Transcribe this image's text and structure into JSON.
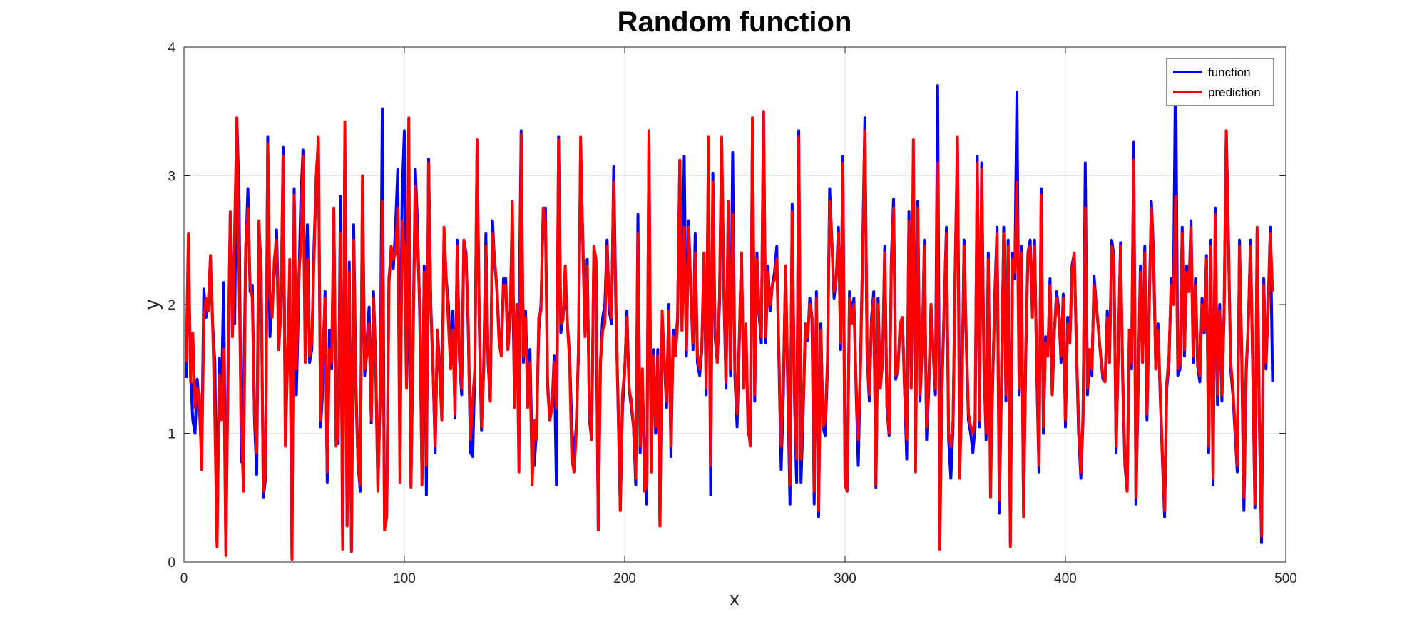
{
  "chart_data": {
    "type": "line",
    "title": "Random function",
    "xlabel": "x",
    "ylabel": "y",
    "xlim": [
      0,
      500
    ],
    "ylim": [
      0,
      4
    ],
    "xticks": [
      0,
      100,
      200,
      300,
      400,
      500
    ],
    "yticks": [
      0,
      1,
      2,
      3,
      4
    ],
    "grid": true,
    "legend_position": "top-right",
    "legend": [
      "function",
      "prediction"
    ],
    "colors": {
      "function": "#0000ff",
      "prediction": "#ff0000"
    },
    "x_start": 1,
    "x_step": 1,
    "series": [
      {
        "name": "function",
        "color": "#0000ff",
        "y": [
          1.43,
          2.45,
          1.45,
          1.1,
          1.0,
          1.42,
          1.2,
          0.8,
          2.12,
          1.9,
          2.0,
          2.35,
          1.85,
          1.55,
          0.15,
          1.58,
          1.25,
          2.17,
          0.1,
          1.5,
          2.7,
          2.0,
          1.85,
          3.45,
          2.8,
          0.78,
          1.2,
          2.4,
          2.9,
          2.1,
          2.15,
          1.1,
          0.68,
          2.6,
          2.3,
          0.5,
          0.65,
          3.3,
          1.75,
          2.0,
          2.25,
          2.58,
          1.85,
          1.9,
          3.22,
          1.0,
          1.62,
          2.0,
          0.05,
          2.9,
          1.3,
          2.05,
          2.8,
          3.2,
          1.8,
          2.62,
          1.55,
          1.65,
          2.45,
          2.98,
          3.25,
          1.05,
          1.35,
          2.1,
          0.62,
          1.8,
          1.5,
          2.7,
          0.95,
          0.92,
          2.84,
          0.14,
          3.3,
          0.28,
          2.33,
          0.1,
          2.62,
          1.4,
          0.75,
          0.55,
          2.95,
          1.45,
          1.7,
          1.98,
          1.08,
          2.1,
          1.55,
          0.58,
          1.25,
          3.52,
          0.3,
          0.35,
          2.2,
          2.4,
          2.28,
          2.6,
          3.05,
          1.2,
          2.85,
          3.35,
          1.4,
          2.4,
          0.6,
          1.8,
          3.05,
          2.6,
          1.9,
          0.65,
          2.3,
          0.52,
          3.13,
          2.0,
          1.5,
          0.85,
          1.8,
          1.55,
          1.12,
          2.55,
          2.2,
          2.0,
          1.55,
          1.95,
          1.12,
          2.5,
          1.58,
          1.3,
          2.5,
          2.4,
          1.8,
          0.85,
          0.82,
          1.5,
          3.22,
          1.85,
          1.02,
          1.5,
          2.55,
          1.55,
          1.25,
          2.65,
          2.3,
          2.15,
          1.75,
          1.65,
          2.2,
          2.2,
          1.65,
          1.95,
          2.35,
          1.25,
          2.0,
          1.75,
          3.35,
          1.55,
          1.95,
          1.35,
          1.65,
          0.82,
          0.75,
          1.05,
          1.8,
          2.0,
          2.7,
          2.75,
          1.4,
          1.1,
          1.2,
          1.6,
          0.6,
          3.3,
          1.78,
          1.9,
          2.15,
          1.85,
          1.6,
          1.05,
          0.8,
          1.05,
          1.6,
          3.2,
          2.5,
          1.8,
          2.35,
          1.1,
          0.95,
          2.42,
          2.1,
          0.25,
          1.55,
          1.9,
          2.0,
          2.5,
          1.95,
          1.85,
          3.07,
          2.0,
          1.2,
          0.4,
          1.2,
          1.48,
          1.95,
          1.35,
          1.2,
          1.05,
          0.6,
          2.7,
          0.85,
          1.42,
          0.85,
          0.45,
          3.35,
          0.7,
          1.65,
          1.0,
          1.65,
          0.28,
          1.9,
          1.55,
          1.2,
          2.0,
          0.82,
          1.8,
          1.65,
          1.9,
          3.12,
          1.8,
          3.15,
          1.6,
          2.65,
          2.1,
          1.65,
          2.55,
          1.55,
          1.45,
          1.65,
          2.4,
          1.3,
          3.2,
          0.52,
          3.02,
          1.75,
          1.55,
          2.0,
          3.25,
          2.1,
          1.35,
          2.8,
          1.45,
          3.18,
          1.45,
          1.05,
          1.7,
          2.4,
          1.35,
          1.82,
          1.0,
          0.95,
          3.45,
          1.25,
          2.4,
          1.92,
          1.7,
          3.5,
          1.7,
          2.3,
          1.95,
          2.15,
          2.25,
          2.45,
          1.55,
          0.72,
          1.3,
          2.3,
          1.35,
          0.45,
          2.78,
          1.3,
          0.62,
          3.35,
          0.62,
          1.15,
          1.85,
          1.72,
          2.05,
          1.9,
          0.45,
          2.1,
          0.35,
          1.85,
          1.05,
          0.98,
          1.5,
          2.9,
          2.5,
          2.05,
          2.2,
          2.6,
          1.65,
          3.15,
          0.6,
          0.55,
          2.1,
          1.9,
          2.05,
          1.35,
          0.75,
          1.55,
          2.45,
          3.45,
          1.6,
          1.25,
          1.9,
          2.1,
          0.58,
          2.05,
          1.35,
          1.55,
          2.45,
          1.2,
          0.98,
          2.35,
          2.82,
          1.42,
          1.5,
          1.85,
          1.9,
          1.35,
          0.8,
          2.72,
          1.35,
          2.9,
          1.6,
          2.8,
          1.25,
          1.65,
          2.5,
          0.95,
          1.35,
          2.0,
          1.62,
          1.3,
          3.7,
          0.5,
          1.35,
          2.0,
          2.6,
          0.95,
          0.65,
          1.05,
          2.3,
          3.25,
          1.1,
          1.25,
          2.5,
          1.7,
          1.1,
          1.0,
          0.85,
          1.05,
          3.15,
          1.05,
          3.1,
          1.55,
          0.95,
          2.4,
          0.7,
          1.4,
          2.1,
          2.6,
          0.38,
          1.4,
          2.6,
          1.25,
          2.5,
          0.15,
          2.4,
          2.2,
          3.65,
          1.3,
          2.45,
          0.38,
          1.6,
          2.4,
          2.5,
          1.95,
          2.5,
          1.45,
          0.7,
          2.9,
          1.0,
          1.75,
          1.6,
          2.2,
          1.3,
          1.8,
          2.1,
          1.95,
          1.55,
          2.08,
          1.05,
          1.9,
          1.7,
          2.3,
          2.4,
          1.65,
          1.0,
          0.65,
          1.1,
          3.1,
          1.3,
          1.6,
          1.45,
          2.22,
          2.0,
          1.8,
          1.6,
          1.42,
          1.4,
          1.95,
          1.55,
          2.5,
          2.38,
          0.85,
          1.65,
          2.48,
          1.4,
          0.75,
          0.55,
          1.8,
          1.5,
          3.26,
          0.45,
          1.35,
          2.3,
          1.55,
          2.45,
          1.1,
          2.0,
          2.8,
          2.4,
          1.5,
          1.85,
          1.3,
          0.8,
          0.35,
          1.35,
          1.55,
          2.2,
          2.05,
          3.9,
          1.45,
          1.5,
          2.6,
          1.6,
          2.3,
          2.1,
          2.65,
          1.55,
          2.2,
          1.52,
          1.4,
          2.05,
          1.78,
          2.38,
          0.85,
          2.5,
          0.6,
          2.75,
          1.22,
          2.0,
          1.25,
          1.95,
          3.35,
          2.5,
          1.5,
          1.3,
          1.0,
          0.7,
          2.5,
          1.6,
          0.4,
          1.45,
          1.85,
          2.5,
          1.5,
          0.42,
          2.55,
          1.1,
          0.15,
          2.2,
          1.5,
          2.0,
          2.6,
          1.4
        ]
      },
      {
        "name": "prediction",
        "color": "#ff0000",
        "y": [
          1.55,
          2.55,
          1.4,
          1.78,
          1.2,
          1.35,
          1.3,
          0.72,
          1.9,
          2.05,
          1.95,
          2.38,
          1.85,
          1.12,
          0.12,
          1.45,
          1.1,
          1.65,
          0.05,
          1.55,
          2.72,
          1.75,
          2.6,
          3.45,
          2.2,
          1.1,
          0.55,
          2.45,
          2.75,
          2.15,
          2.05,
          1.15,
          0.85,
          2.65,
          2.25,
          0.55,
          0.7,
          3.25,
          2.05,
          1.9,
          2.35,
          2.5,
          1.65,
          1.95,
          3.15,
          0.9,
          1.55,
          2.35,
          0.02,
          2.85,
          1.5,
          2.2,
          2.45,
          3.15,
          1.55,
          2.35,
          1.6,
          1.7,
          2.35,
          3.0,
          3.3,
          1.1,
          1.6,
          2.05,
          0.7,
          1.65,
          1.55,
          2.75,
          0.9,
          1.0,
          2.55,
          0.1,
          3.42,
          0.28,
          2.25,
          0.08,
          2.5,
          1.3,
          0.75,
          0.6,
          3.0,
          1.5,
          1.6,
          1.85,
          1.1,
          2.05,
          1.5,
          0.55,
          1.3,
          2.8,
          0.25,
          0.35,
          2.15,
          2.45,
          2.35,
          2.4,
          2.75,
          0.62,
          2.65,
          2.45,
          1.35,
          3.45,
          0.58,
          1.75,
          2.92,
          2.45,
          2.0,
          0.6,
          2.25,
          0.75,
          3.1,
          1.95,
          1.5,
          0.9,
          1.8,
          1.5,
          1.1,
          2.6,
          2.2,
          1.85,
          1.5,
          1.8,
          1.15,
          2.45,
          1.6,
          1.35,
          2.5,
          2.35,
          1.85,
          0.95,
          1.25,
          1.5,
          3.28,
          1.9,
          1.05,
          1.5,
          2.45,
          1.6,
          1.25,
          2.55,
          2.35,
          2.1,
          1.7,
          1.6,
          2.15,
          2.15,
          1.65,
          1.9,
          2.8,
          1.2,
          2.0,
          0.7,
          3.32,
          1.6,
          1.9,
          1.2,
          1.55,
          0.6,
          1.1,
          0.95,
          1.9,
          1.95,
          2.75,
          2.65,
          1.35,
          1.1,
          1.2,
          1.55,
          1.2,
          3.28,
          1.85,
          1.88,
          2.3,
          1.85,
          1.55,
          0.8,
          0.7,
          1.0,
          1.65,
          3.3,
          2.45,
          1.75,
          2.3,
          1.15,
          0.95,
          2.45,
          2.35,
          0.25,
          1.55,
          1.8,
          1.85,
          2.45,
          2.0,
          1.9,
          2.95,
          1.95,
          1.25,
          0.4,
          1.3,
          1.5,
          1.9,
          1.35,
          1.25,
          1.05,
          0.65,
          2.55,
          0.9,
          1.5,
          0.55,
          0.6,
          3.35,
          0.7,
          1.6,
          1.05,
          1.6,
          0.28,
          1.95,
          1.55,
          1.25,
          1.95,
          0.9,
          1.75,
          1.6,
          1.85,
          3.12,
          1.8,
          2.6,
          1.65,
          2.6,
          2.1,
          1.7,
          2.4,
          1.6,
          1.5,
          1.7,
          2.4,
          1.35,
          3.3,
          0.75,
          2.95,
          1.8,
          1.55,
          2.05,
          3.3,
          2.15,
          1.4,
          2.8,
          1.5,
          2.7,
          1.5,
          1.15,
          1.75,
          2.4,
          1.35,
          1.85,
          1.05,
          0.9,
          3.45,
          1.3,
          2.35,
          1.95,
          1.75,
          3.5,
          1.75,
          2.25,
          2.0,
          2.15,
          2.2,
          2.35,
          1.6,
          0.9,
          1.4,
          2.3,
          1.4,
          0.6,
          2.72,
          1.35,
          0.8,
          3.3,
          0.8,
          1.2,
          1.85,
          1.75,
          2.0,
          1.9,
          0.55,
          2.05,
          0.4,
          1.8,
          1.05,
          1.1,
          1.55,
          2.8,
          2.5,
          2.1,
          2.2,
          2.55,
          1.7,
          3.1,
          0.6,
          0.55,
          2.05,
          1.85,
          2.0,
          1.4,
          0.95,
          1.5,
          2.4,
          3.35,
          1.65,
          1.3,
          1.85,
          2.05,
          0.6,
          2.0,
          1.35,
          1.55,
          2.4,
          1.25,
          1.0,
          2.3,
          2.75,
          1.45,
          1.5,
          1.85,
          1.9,
          1.35,
          0.95,
          2.65,
          1.35,
          3.28,
          0.7,
          2.75,
          1.3,
          1.65,
          2.45,
          1.05,
          1.4,
          2.0,
          1.6,
          1.35,
          3.1,
          0.1,
          1.4,
          2.0,
          2.55,
          1.0,
          0.9,
          1.1,
          2.3,
          3.3,
          0.65,
          1.3,
          2.45,
          1.75,
          1.15,
          1.05,
          1.0,
          1.1,
          3.1,
          1.1,
          3.05,
          1.6,
          1.0,
          2.35,
          0.5,
          1.45,
          2.05,
          2.55,
          0.48,
          1.45,
          2.55,
          1.3,
          2.45,
          0.12,
          2.35,
          2.25,
          2.95,
          1.35,
          2.4,
          0.35,
          1.65,
          2.4,
          2.45,
          1.9,
          2.45,
          1.5,
          0.75,
          2.85,
          1.05,
          1.7,
          1.6,
          2.15,
          1.3,
          1.8,
          2.05,
          1.9,
          1.6,
          2.05,
          1.1,
          1.85,
          1.7,
          2.25,
          2.4,
          1.65,
          1.1,
          0.7,
          1.15,
          2.75,
          1.35,
          1.65,
          1.5,
          2.15,
          2.0,
          1.8,
          1.6,
          1.45,
          1.4,
          1.9,
          1.55,
          2.45,
          2.35,
          0.9,
          1.65,
          2.45,
          1.45,
          0.8,
          0.55,
          1.8,
          1.55,
          3.12,
          0.5,
          1.4,
          2.25,
          1.55,
          2.4,
          1.15,
          1.95,
          2.75,
          2.35,
          1.5,
          1.8,
          1.35,
          0.85,
          0.4,
          1.4,
          1.6,
          2.15,
          2.0,
          2.84,
          1.5,
          1.55,
          2.55,
          1.65,
          2.25,
          2.1,
          2.6,
          1.6,
          2.15,
          1.55,
          1.45,
          2.0,
          1.8,
          2.35,
          0.9,
          2.45,
          0.65,
          2.7,
          1.3,
          1.95,
          1.3,
          1.9,
          3.35,
          2.45,
          1.55,
          1.35,
          1.05,
          0.75,
          2.45,
          1.65,
          0.5,
          1.5,
          1.85,
          2.45,
          1.55,
          0.45,
          2.6,
          1.15,
          0.2,
          2.15,
          1.55,
          1.95,
          2.55,
          2.1
        ]
      }
    ]
  }
}
